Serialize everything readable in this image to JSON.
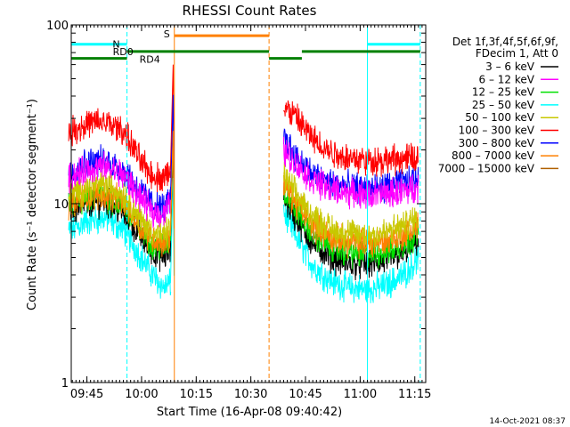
{
  "chart_data": {
    "type": "line",
    "title": "RHESSI Count Rates",
    "xlabel": "Start Time (16-Apr-08 09:40:42)",
    "ylabel": "Count Rate (s⁻¹ detector segment⁻¹)",
    "yscale": "log",
    "xlim": [
      "09:40:42",
      "11:18:00"
    ],
    "ylim": [
      1,
      100
    ],
    "x_ticks": [
      "09:45",
      "10:00",
      "10:15",
      "10:30",
      "10:45",
      "11:00",
      "11:15"
    ],
    "y_ticks": [
      "1",
      "10",
      "100"
    ],
    "legend": {
      "placement": "right",
      "header": [
        "Det 1f,3f,4f,5f,6f,9f,",
        "FDecim 1, Att 0"
      ],
      "entries": [
        {
          "label": "3 – 6 keV",
          "color": "#000000"
        },
        {
          "label": "6 – 12 keV",
          "color": "#ff00ff"
        },
        {
          "label": "12 – 25 keV",
          "color": "#00e000"
        },
        {
          "label": "25 – 50 keV",
          "color": "#00ffff"
        },
        {
          "label": "50 – 100 keV",
          "color": "#c8c800"
        },
        {
          "label": "100 – 300 keV",
          "color": "#ff0000"
        },
        {
          "label": "300 – 800 keV",
          "color": "#0000ff"
        },
        {
          "label": "800 – 7000 keV",
          "color": "#ff8000"
        },
        {
          "label": "7000 – 15000 keV",
          "color": "#b06000"
        }
      ]
    },
    "series": [
      {
        "label": "3 – 6 keV",
        "color": "#000000",
        "segments": [
          {
            "x": [
              "09:40",
              "09:45",
              "09:50",
              "09:55",
              "10:00",
              "10:03",
              "10:06",
              "10:08"
            ],
            "y": [
              9.0,
              10.0,
              10.3,
              9.0,
              6.5,
              5.4,
              5.0,
              5.5
            ]
          },
          {
            "x": [
              "10:39",
              "10:42",
              "10:47",
              "10:52",
              "10:57",
              "11:02",
              "11:07",
              "11:12",
              "11:16"
            ],
            "y": [
              11.0,
              8.5,
              6.0,
              5.0,
              4.6,
              4.6,
              4.8,
              5.3,
              6.3
            ]
          }
        ]
      },
      {
        "label": "6 – 12 keV",
        "color": "#ff00ff",
        "segments": [
          {
            "x": [
              "09:40",
              "09:45",
              "09:50",
              "09:55",
              "10:00",
              "10:03",
              "10:06",
              "10:08"
            ],
            "y": [
              14.0,
              15.5,
              16.0,
              14.5,
              10.5,
              9.0,
              8.8,
              10.0
            ]
          },
          {
            "x": [
              "10:39",
              "10:42",
              "10:47",
              "10:52",
              "10:57",
              "11:02",
              "11:07",
              "11:12",
              "11:16"
            ],
            "y": [
              20.0,
              17.0,
              13.5,
              12.0,
              11.5,
              11.2,
              11.3,
              11.8,
              12.5
            ]
          }
        ]
      },
      {
        "label": "12 – 25 keV",
        "color": "#00e000",
        "segments": [
          {
            "x": [
              "09:40",
              "09:45",
              "09:50",
              "09:55",
              "10:00",
              "10:03",
              "10:06",
              "10:08"
            ],
            "y": [
              9.5,
              10.8,
              11.0,
              9.8,
              7.0,
              6.0,
              5.7,
              6.2
            ]
          },
          {
            "x": [
              "10:39",
              "10:42",
              "10:47",
              "10:52",
              "10:57",
              "11:02",
              "11:07",
              "11:12",
              "11:16"
            ],
            "y": [
              12.0,
              9.5,
              6.8,
              5.7,
              5.3,
              5.2,
              5.4,
              5.9,
              6.8
            ]
          }
        ]
      },
      {
        "label": "25 – 50 keV",
        "color": "#00ffff",
        "segments": [
          {
            "x": [
              "09:40",
              "09:45",
              "09:50",
              "09:55",
              "10:00",
              "10:03",
              "10:06",
              "10:08"
            ],
            "y": [
              7.0,
              8.0,
              8.3,
              7.2,
              5.0,
              4.0,
              3.4,
              3.6
            ]
          },
          {
            "x": [
              "10:39",
              "10:42",
              "10:47",
              "10:52",
              "10:57",
              "11:02",
              "11:07",
              "11:12",
              "11:16"
            ],
            "y": [
              9.0,
              6.8,
              4.5,
              3.7,
              3.4,
              3.3,
              3.5,
              4.0,
              5.0
            ]
          }
        ]
      },
      {
        "label": "50 – 100 keV",
        "color": "#c8c800",
        "segments": [
          {
            "x": [
              "09:40",
              "09:45",
              "09:50",
              "09:55",
              "10:00",
              "10:03",
              "10:06",
              "10:08"
            ],
            "y": [
              11.0,
              12.3,
              12.8,
              11.3,
              8.0,
              6.9,
              6.6,
              7.3
            ]
          },
          {
            "x": [
              "10:39",
              "10:42",
              "10:47",
              "10:52",
              "10:57",
              "11:02",
              "11:07",
              "11:12",
              "11:16"
            ],
            "y": [
              14.5,
              11.5,
              8.5,
              7.2,
              6.8,
              6.7,
              6.9,
              7.5,
              8.5
            ]
          }
        ]
      },
      {
        "label": "100 – 300 keV",
        "color": "#ff0000",
        "segments": [
          {
            "x": [
              "09:40",
              "09:45",
              "09:50",
              "09:55",
              "10:00",
              "10:03",
              "10:06",
              "10:08"
            ],
            "y": [
              25.0,
              28.0,
              28.5,
              25.5,
              17.0,
              14.5,
              13.8,
              15.5
            ]
          },
          {
            "x": [
              "10:39",
              "10:42",
              "10:47",
              "10:52",
              "10:57",
              "11:02",
              "11:07",
              "11:12",
              "11:16"
            ],
            "y": [
              35.0,
              31.0,
              23.0,
              19.5,
              18.0,
              17.5,
              17.5,
              17.8,
              18.0
            ]
          }
        ]
      },
      {
        "label": "300 – 800 keV",
        "color": "#0000ff",
        "segments": [
          {
            "x": [
              "09:40",
              "09:45",
              "09:50",
              "09:55",
              "10:00",
              "10:03",
              "10:06",
              "10:08"
            ],
            "y": [
              15.0,
              17.0,
              17.5,
              15.5,
              11.5,
              10.0,
              9.5,
              10.5
            ]
          },
          {
            "x": [
              "10:39",
              "10:42",
              "10:47",
              "10:52",
              "10:57",
              "11:02",
              "11:07",
              "11:12",
              "11:16"
            ],
            "y": [
              24.0,
              19.0,
              14.5,
              13.0,
              12.5,
              12.2,
              12.3,
              13.0,
              14.0
            ]
          }
        ]
      },
      {
        "label": "800 – 7000 keV",
        "color": "#ff8000",
        "segments": [
          {
            "x": [
              "09:40",
              "09:45",
              "09:50",
              "09:55",
              "10:00",
              "10:03",
              "10:06",
              "10:08"
            ],
            "y": [
              10.0,
              11.0,
              11.3,
              10.2,
              7.3,
              6.4,
              6.0,
              6.6
            ]
          },
          {
            "x": [
              "10:39",
              "10:42",
              "10:47",
              "10:52",
              "10:57",
              "11:02",
              "11:07",
              "11:12",
              "11:16"
            ],
            "y": [
              13.0,
              10.3,
              7.6,
              6.5,
              6.1,
              6.0,
              6.2,
              6.7,
              7.5
            ]
          }
        ]
      }
    ],
    "spike": {
      "x": "10:08:40",
      "y": 60
    },
    "annotations": [
      {
        "label": "N",
        "color": "#00ffff"
      },
      {
        "label": "S",
        "color": "#ff8000"
      },
      {
        "label": "RD0",
        "color": "#008000"
      },
      {
        "label": "RD4",
        "color": "#008000"
      }
    ],
    "flag_bars": [
      {
        "name": "N",
        "color": "#00ffff",
        "y": 78,
        "spans": [
          [
            "09:40:42",
            "09:56:00"
          ],
          [
            "11:02:00",
            "11:16:30"
          ]
        ]
      },
      {
        "name": "S",
        "color": "#ff8000",
        "y": 87,
        "spans": [
          [
            "10:09:00",
            "10:35:00"
          ]
        ]
      },
      {
        "name": "RD0",
        "color": "#008000",
        "y": 71,
        "spans": [
          [
            "09:56:00",
            "10:35:00"
          ],
          [
            "10:44:00",
            "11:16:30"
          ]
        ]
      },
      {
        "name": "RD4",
        "color": "#008000",
        "y": 65,
        "spans": [
          [
            "09:40:42",
            "09:56:00"
          ],
          [
            "10:35:00",
            "10:44:00"
          ]
        ]
      }
    ],
    "vertical_lines": [
      {
        "x": "09:40:42",
        "color": "#00ffff",
        "style": "solid"
      },
      {
        "x": "09:56:00",
        "color": "#00ffff",
        "style": "dashed"
      },
      {
        "x": "10:09:00",
        "color": "#ff8000",
        "style": "solid"
      },
      {
        "x": "10:35:00",
        "color": "#ff8000",
        "style": "dashed"
      },
      {
        "x": "11:02:00",
        "color": "#00ffff",
        "style": "solid"
      },
      {
        "x": "11:16:30",
        "color": "#00ffff",
        "style": "dashed"
      }
    ],
    "grid": false,
    "footer": "14-Oct-2021 08:37"
  }
}
